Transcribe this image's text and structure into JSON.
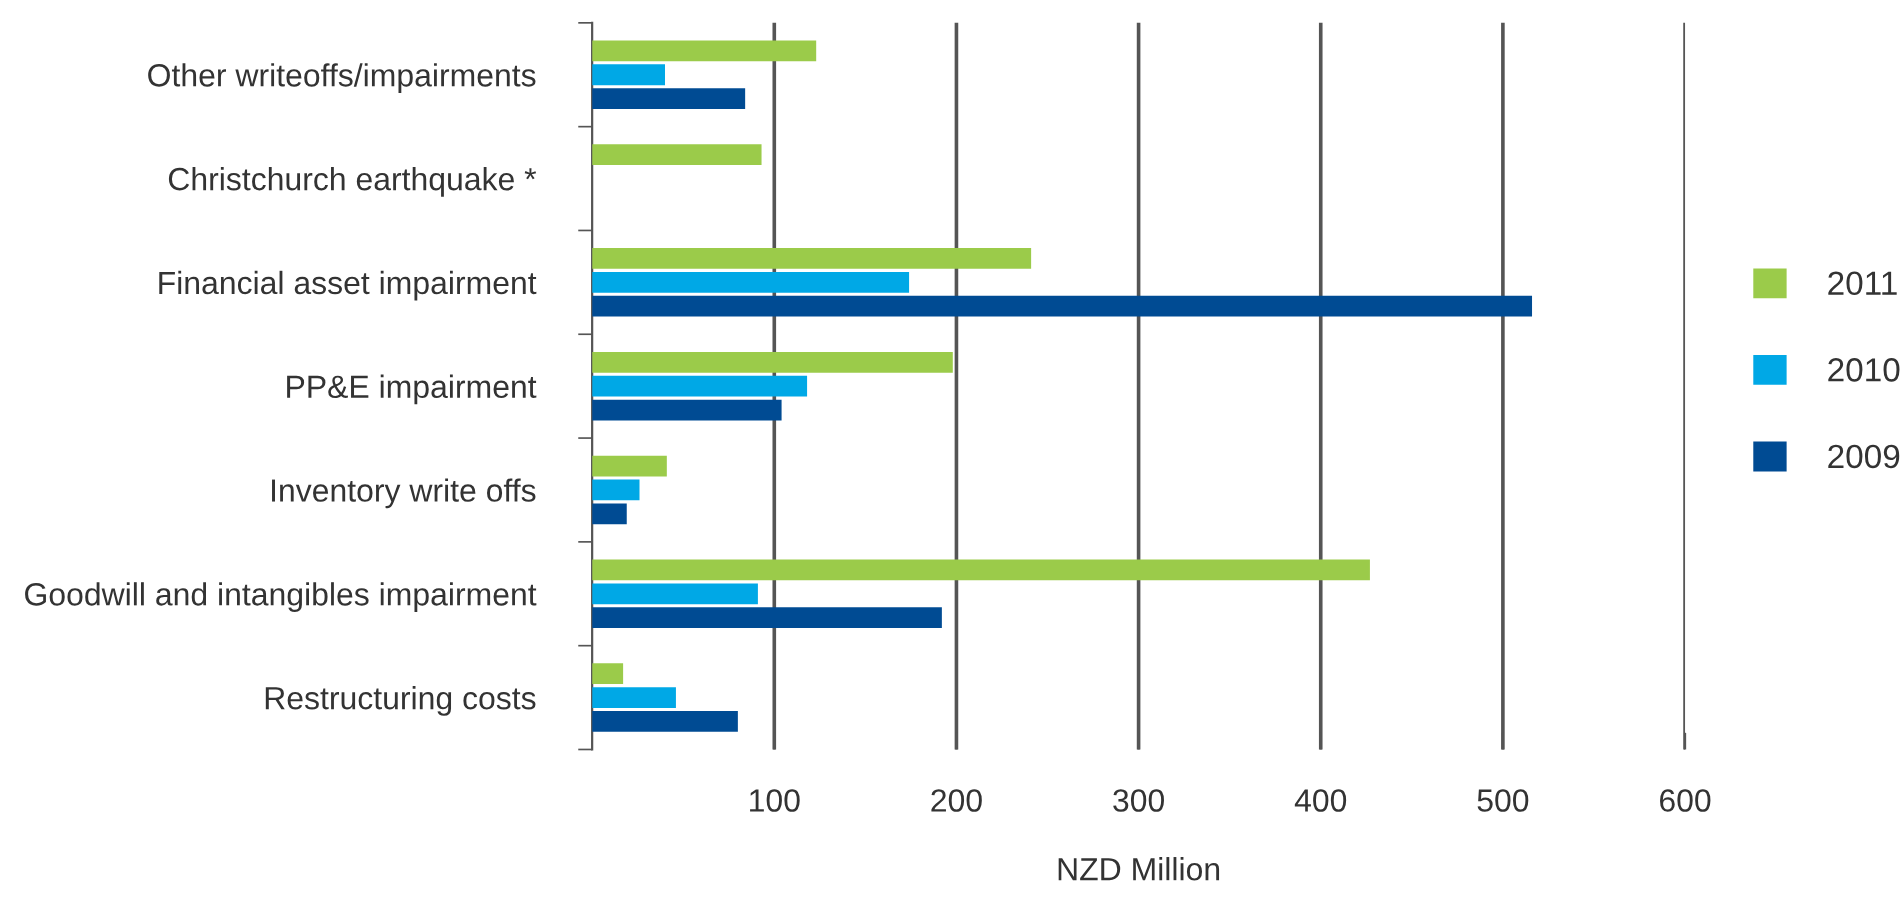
{
  "chart_data": {
    "type": "bar",
    "orientation": "horizontal",
    "xlabel": "NZD Million",
    "categories": [
      "Other writeoffs/impairments",
      "Christchurch earthquake *",
      "Financial asset impairment",
      "PP&E impairment",
      "Inventory write offs",
      "Goodwill and intangibles impairment",
      "Restructuring costs"
    ],
    "series": [
      {
        "name": "2011",
        "color": "#9bcb4a",
        "values": [
          123,
          93,
          241,
          198,
          41,
          427,
          17
        ]
      },
      {
        "name": "2010",
        "color": "#00a8e6",
        "values": [
          40,
          null,
          174,
          118,
          26,
          91,
          46
        ]
      },
      {
        "name": "2009",
        "color": "#004b93",
        "values": [
          84,
          null,
          516,
          104,
          19,
          192,
          80
        ]
      }
    ],
    "xlim": [
      0,
      600
    ],
    "xticks": [
      100,
      200,
      300,
      400,
      500,
      600
    ],
    "grid": "x",
    "legend": "right"
  }
}
